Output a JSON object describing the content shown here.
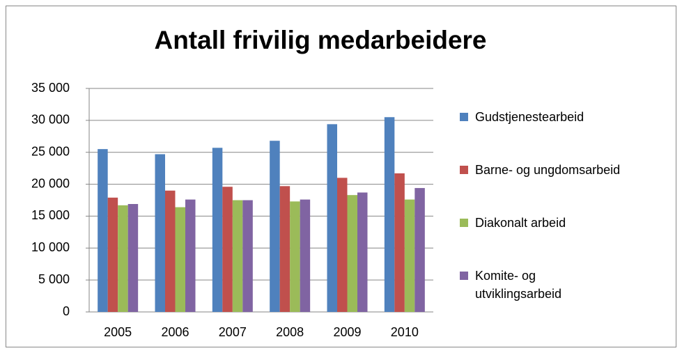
{
  "chart_data": {
    "type": "bar",
    "title": "Antall frivilig medarbeidere",
    "categories": [
      "2005",
      "2006",
      "2007",
      "2008",
      "2009",
      "2010"
    ],
    "series": [
      {
        "name": "Gudstjenestearbeid",
        "color": "#4f81bd",
        "values": [
          25500,
          24700,
          25700,
          26800,
          29400,
          30500
        ]
      },
      {
        "name": "Barne- og ungdomsarbeid",
        "color": "#c0504d",
        "values": [
          17900,
          19000,
          19600,
          19700,
          21000,
          21700
        ]
      },
      {
        "name": "Diakonalt arbeid",
        "color": "#9bbb59",
        "values": [
          16700,
          16400,
          17500,
          17300,
          18300,
          17600
        ]
      },
      {
        "name": "Komite- og utviklingsarbeid",
        "color": "#8064a2",
        "values": [
          16900,
          17600,
          17500,
          17600,
          18700,
          19400
        ]
      }
    ],
    "ylim": [
      0,
      35000
    ],
    "yticks": [
      0,
      {
        "value": 5000,
        "label": "5 000"
      },
      {
        "value": 10000,
        "label": "10 000"
      },
      {
        "value": 15000,
        "label": "15 000"
      },
      {
        "value": 20000,
        "label": "20 000"
      },
      {
        "value": 25000,
        "label": "25 000"
      },
      {
        "value": 30000,
        "label": "30 000"
      },
      {
        "value": 35000,
        "label": "35 000"
      }
    ],
    "grid": true,
    "legend": "right"
  }
}
